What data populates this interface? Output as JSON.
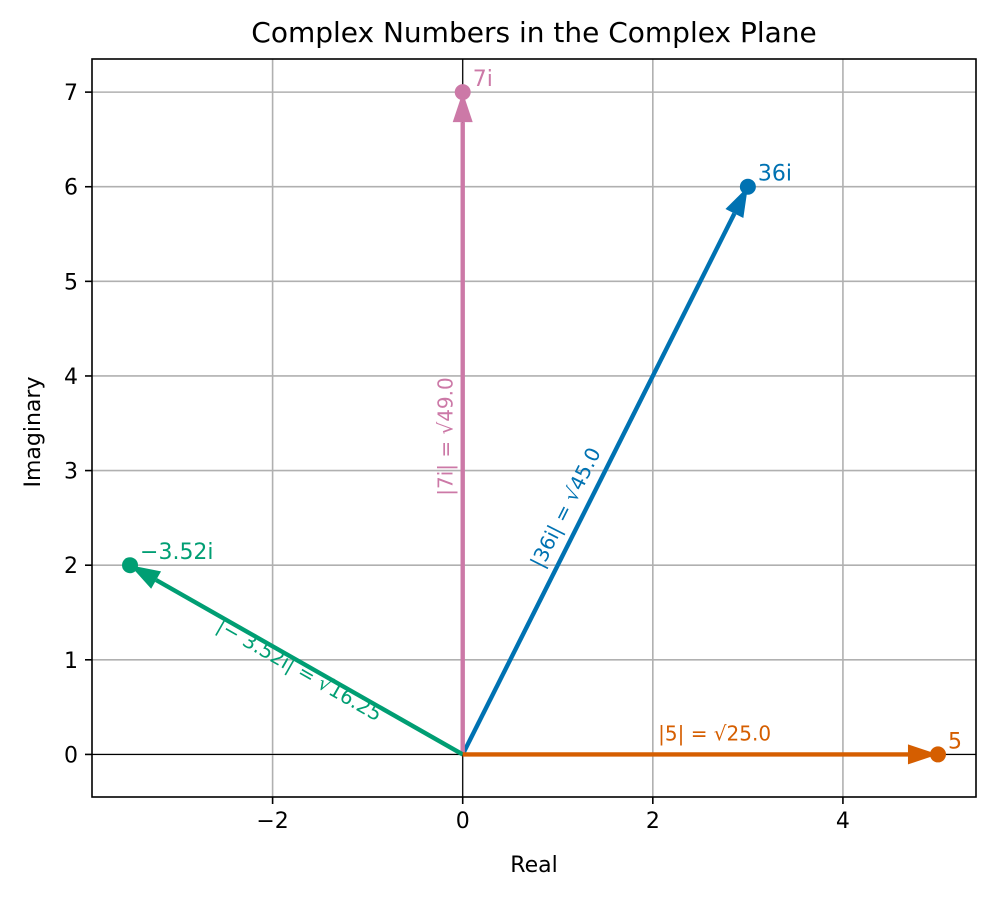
{
  "chart_data": {
    "type": "vector",
    "title": "Complex Numbers in the Complex Plane",
    "xlabel": "Real",
    "ylabel": "Imaginary",
    "xlim": [
      -3.9,
      5.4
    ],
    "ylim": [
      -0.45,
      7.35
    ],
    "xticks": [
      -2,
      0,
      2,
      4
    ],
    "yticks": [
      0,
      1,
      2,
      3,
      4,
      5,
      6,
      7
    ],
    "xtick_labels": [
      "−2",
      "0",
      "2",
      "4"
    ],
    "ytick_labels": [
      "0",
      "1",
      "2",
      "3",
      "4",
      "5",
      "6",
      "7"
    ],
    "grid": true,
    "vectors": [
      {
        "x": 3,
        "y": 6,
        "label": "36i",
        "magnitude_label": "|36i| = √45.0",
        "color": "#0072b2"
      },
      {
        "x": 0,
        "y": 7,
        "label": "7i",
        "magnitude_label": "|7i| = √49.0",
        "color": "#cc79a7"
      },
      {
        "x": -3.5,
        "y": 2,
        "label": "−3.52i",
        "magnitude_label": "|− 3.52i| = √16.25",
        "color": "#009e73"
      },
      {
        "x": 5,
        "y": 0,
        "label": "5",
        "magnitude_label": "|5| = √25.0",
        "color": "#d55e00"
      }
    ]
  }
}
